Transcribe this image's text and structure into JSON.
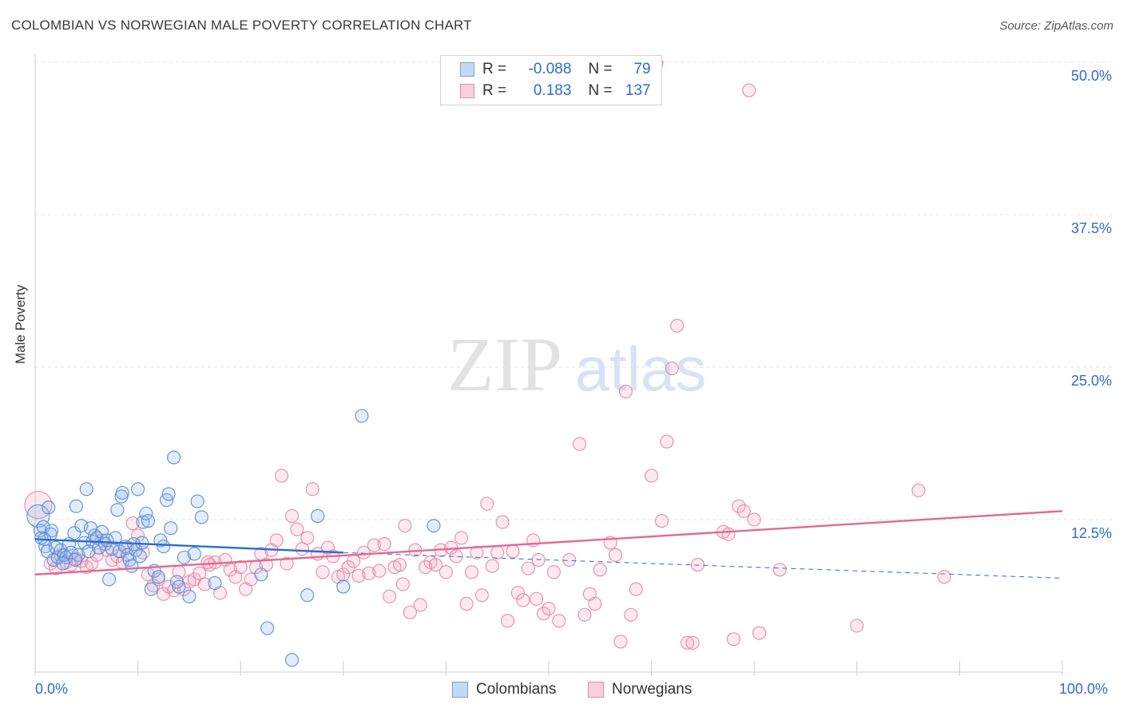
{
  "title": "COLOMBIAN VS NORWEGIAN MALE POVERTY CORRELATION CHART",
  "source": "Source: ZipAtlas.com",
  "watermark": {
    "zip": "ZIP",
    "atlas": "atlas"
  },
  "legend": {
    "rows": [
      {
        "r_label": "R =",
        "r_value": "-0.088",
        "n_label": "N =",
        "n_value": "79",
        "color": "#6fa0e0",
        "fill": "#c5d9f5"
      },
      {
        "r_label": "R =",
        "r_value": "0.183",
        "n_label": "N =",
        "n_value": "137",
        "color": "#e88aa8",
        "fill": "#f8cfdc"
      }
    ]
  },
  "bottom_legend": [
    "Colombians",
    "Norwegians"
  ],
  "colors": {
    "colombians": "#5b8fd8",
    "norwegians": "#e37da0",
    "col_line": "#2a6ccf",
    "nor_line": "#e06a93",
    "axis_text": "#2f6bd1"
  },
  "chart_data": {
    "type": "scatter",
    "title": "COLOMBIAN VS NORWEGIAN MALE POVERTY CORRELATION CHART",
    "xlabel": "",
    "ylabel": "Male Poverty",
    "xlim": [
      0,
      100
    ],
    "ylim": [
      0,
      52
    ],
    "x_tick_labels": [
      "0.0%",
      "100.0%"
    ],
    "y_ticks": [
      12.5,
      25.0,
      37.5,
      50.0
    ],
    "y_tick_labels": [
      "12.5%",
      "25.0%",
      "37.5%",
      "50.0%"
    ],
    "grid": true,
    "legend_position": "top-center",
    "series": [
      {
        "name": "Colombians",
        "trend": {
          "x": [
            0,
            30
          ],
          "y": [
            10.9,
            9.8
          ],
          "dashed_to": [
            100,
            7.7
          ]
        },
        "points": [
          [
            0.3,
            12.8
          ],
          [
            0.5,
            11.6
          ],
          [
            0.6,
            11.0
          ],
          [
            0.8,
            11.9
          ],
          [
            1.0,
            10.3
          ],
          [
            1.2,
            9.9
          ],
          [
            1.3,
            13.5
          ],
          [
            1.5,
            11.3
          ],
          [
            1.6,
            11.6
          ],
          [
            1.8,
            9.2
          ],
          [
            2.0,
            10.2
          ],
          [
            2.2,
            9.4
          ],
          [
            2.5,
            10.0
          ],
          [
            2.8,
            9.6
          ],
          [
            3.0,
            9.4
          ],
          [
            3.3,
            10.5
          ],
          [
            3.5,
            9.8
          ],
          [
            3.8,
            11.4
          ],
          [
            4.0,
            13.6
          ],
          [
            4.2,
            9.6
          ],
          [
            4.5,
            12.0
          ],
          [
            4.8,
            10.6
          ],
          [
            5.0,
            15.0
          ],
          [
            5.2,
            9.9
          ],
          [
            5.4,
            11.8
          ],
          [
            5.6,
            10.7
          ],
          [
            5.8,
            11.2
          ],
          [
            6.0,
            11.0
          ],
          [
            6.2,
            10.2
          ],
          [
            6.5,
            11.5
          ],
          [
            6.8,
            10.5
          ],
          [
            7.0,
            10.8
          ],
          [
            7.2,
            7.6
          ],
          [
            7.5,
            10.1
          ],
          [
            7.8,
            11.0
          ],
          [
            8.0,
            13.3
          ],
          [
            8.2,
            9.9
          ],
          [
            8.4,
            14.4
          ],
          [
            8.5,
            14.7
          ],
          [
            8.8,
            10.3
          ],
          [
            9.0,
            9.6
          ],
          [
            9.2,
            9.2
          ],
          [
            9.4,
            8.7
          ],
          [
            9.6,
            10.5
          ],
          [
            9.8,
            10.0
          ],
          [
            10.0,
            15.0
          ],
          [
            10.2,
            9.5
          ],
          [
            10.4,
            10.6
          ],
          [
            10.5,
            12.3
          ],
          [
            10.8,
            13.0
          ],
          [
            11.0,
            12.4
          ],
          [
            11.3,
            6.8
          ],
          [
            11.6,
            8.3
          ],
          [
            12.0,
            7.8
          ],
          [
            12.2,
            10.8
          ],
          [
            12.5,
            10.3
          ],
          [
            12.8,
            14.1
          ],
          [
            13.0,
            14.6
          ],
          [
            13.2,
            11.8
          ],
          [
            13.5,
            17.6
          ],
          [
            13.8,
            7.4
          ],
          [
            14.0,
            7.0
          ],
          [
            14.5,
            9.4
          ],
          [
            15.0,
            6.2
          ],
          [
            15.5,
            9.7
          ],
          [
            15.8,
            14.0
          ],
          [
            16.2,
            12.7
          ],
          [
            17.5,
            7.3
          ],
          [
            22.0,
            8.0
          ],
          [
            22.6,
            3.6
          ],
          [
            25.0,
            1.0
          ],
          [
            26.5,
            6.3
          ],
          [
            27.5,
            12.8
          ],
          [
            30.0,
            7.0
          ],
          [
            31.8,
            21.0
          ],
          [
            38.8,
            12.0
          ],
          [
            0.9,
            10.9
          ],
          [
            2.7,
            8.9
          ],
          [
            3.9,
            9.2
          ]
        ]
      },
      {
        "name": "Norwegians",
        "trend": {
          "x": [
            0,
            100
          ],
          "y": [
            8.0,
            13.2
          ]
        },
        "points": [
          [
            0.3,
            13.7
          ],
          [
            1.5,
            8.9
          ],
          [
            2.0,
            8.5
          ],
          [
            2.5,
            9.6
          ],
          [
            3.0,
            9.0
          ],
          [
            3.5,
            8.8
          ],
          [
            4.0,
            9.3
          ],
          [
            4.5,
            9.1
          ],
          [
            5.0,
            8.6
          ],
          [
            5.5,
            8.9
          ],
          [
            6.0,
            9.6
          ],
          [
            6.5,
            10.8
          ],
          [
            7.0,
            10.0
          ],
          [
            7.5,
            9.2
          ],
          [
            8.0,
            9.5
          ],
          [
            8.5,
            9.0
          ],
          [
            9.0,
            10.2
          ],
          [
            9.5,
            12.2
          ],
          [
            10.0,
            11.2
          ],
          [
            10.5,
            9.8
          ],
          [
            11.0,
            8.0
          ],
          [
            11.5,
            7.1
          ],
          [
            12.0,
            7.6
          ],
          [
            12.5,
            6.4
          ],
          [
            13.0,
            7.0
          ],
          [
            13.5,
            6.7
          ],
          [
            14.0,
            8.2
          ],
          [
            14.5,
            6.8
          ],
          [
            15.0,
            7.4
          ],
          [
            15.5,
            7.6
          ],
          [
            16.0,
            8.1
          ],
          [
            16.5,
            7.2
          ],
          [
            17.0,
            8.8
          ],
          [
            17.5,
            9.0
          ],
          [
            18.0,
            6.5
          ],
          [
            18.5,
            9.2
          ],
          [
            19.0,
            8.4
          ],
          [
            19.5,
            7.8
          ],
          [
            20.0,
            8.6
          ],
          [
            20.5,
            6.8
          ],
          [
            21.0,
            7.6
          ],
          [
            21.5,
            8.6
          ],
          [
            22.0,
            9.7
          ],
          [
            22.5,
            8.8
          ],
          [
            23.0,
            10.0
          ],
          [
            23.5,
            10.8
          ],
          [
            24.0,
            16.1
          ],
          [
            24.5,
            8.9
          ],
          [
            25.0,
            12.8
          ],
          [
            25.5,
            11.7
          ],
          [
            26.0,
            10.1
          ],
          [
            26.5,
            11.0
          ],
          [
            27.0,
            15.0
          ],
          [
            27.5,
            9.7
          ],
          [
            28.0,
            8.2
          ],
          [
            28.5,
            10.2
          ],
          [
            29.0,
            9.5
          ],
          [
            29.5,
            7.8
          ],
          [
            30.0,
            8.0
          ],
          [
            30.5,
            8.6
          ],
          [
            31.0,
            9.1
          ],
          [
            31.5,
            7.9
          ],
          [
            32.0,
            9.8
          ],
          [
            32.5,
            8.1
          ],
          [
            33.0,
            10.4
          ],
          [
            33.5,
            8.3
          ],
          [
            34.0,
            10.5
          ],
          [
            34.5,
            6.2
          ],
          [
            35.0,
            8.6
          ],
          [
            35.5,
            8.8
          ],
          [
            36.0,
            12.0
          ],
          [
            36.5,
            4.9
          ],
          [
            37.0,
            10.0
          ],
          [
            37.5,
            5.5
          ],
          [
            38.0,
            8.6
          ],
          [
            38.5,
            9.0
          ],
          [
            39.0,
            8.8
          ],
          [
            39.5,
            10.0
          ],
          [
            40.0,
            8.2
          ],
          [
            40.5,
            10.2
          ],
          [
            41.0,
            9.5
          ],
          [
            41.5,
            11.0
          ],
          [
            42.0,
            5.6
          ],
          [
            42.5,
            8.2
          ],
          [
            43.0,
            9.8
          ],
          [
            43.5,
            6.3
          ],
          [
            44.0,
            13.8
          ],
          [
            44.5,
            8.7
          ],
          [
            45.0,
            9.8
          ],
          [
            45.5,
            12.3
          ],
          [
            46.0,
            4.2
          ],
          [
            46.5,
            9.9
          ],
          [
            47.0,
            6.5
          ],
          [
            47.5,
            5.9
          ],
          [
            48.0,
            8.5
          ],
          [
            48.5,
            10.8
          ],
          [
            49.0,
            9.2
          ],
          [
            49.5,
            4.8
          ],
          [
            50.0,
            5.2
          ],
          [
            50.5,
            8.2
          ],
          [
            51.0,
            4.2
          ],
          [
            52.0,
            9.2
          ],
          [
            53.0,
            18.7
          ],
          [
            53.5,
            4.7
          ],
          [
            54.0,
            6.4
          ],
          [
            54.5,
            5.6
          ],
          [
            55.0,
            8.4
          ],
          [
            56.0,
            10.6
          ],
          [
            56.5,
            9.6
          ],
          [
            57.0,
            2.5
          ],
          [
            57.5,
            23.0
          ],
          [
            58.0,
            4.7
          ],
          [
            58.5,
            6.8
          ],
          [
            60.0,
            16.1
          ],
          [
            61.0,
            12.4
          ],
          [
            61.5,
            18.9
          ],
          [
            62.0,
            24.9
          ],
          [
            62.5,
            28.4
          ],
          [
            63.5,
            2.4
          ],
          [
            64.0,
            2.4
          ],
          [
            64.5,
            8.8
          ],
          [
            67.0,
            11.5
          ],
          [
            67.5,
            11.3
          ],
          [
            68.0,
            2.7
          ],
          [
            68.5,
            13.6
          ],
          [
            69.0,
            13.2
          ],
          [
            69.5,
            47.7
          ],
          [
            70.0,
            12.5
          ],
          [
            70.5,
            3.2
          ],
          [
            72.5,
            8.4
          ],
          [
            80.0,
            3.8
          ],
          [
            86.0,
            14.9
          ],
          [
            88.5,
            7.8
          ],
          [
            60.5,
            49.9
          ],
          [
            48.8,
            6.0
          ],
          [
            16.8,
            9.0
          ],
          [
            35.8,
            7.2
          ]
        ]
      }
    ]
  }
}
